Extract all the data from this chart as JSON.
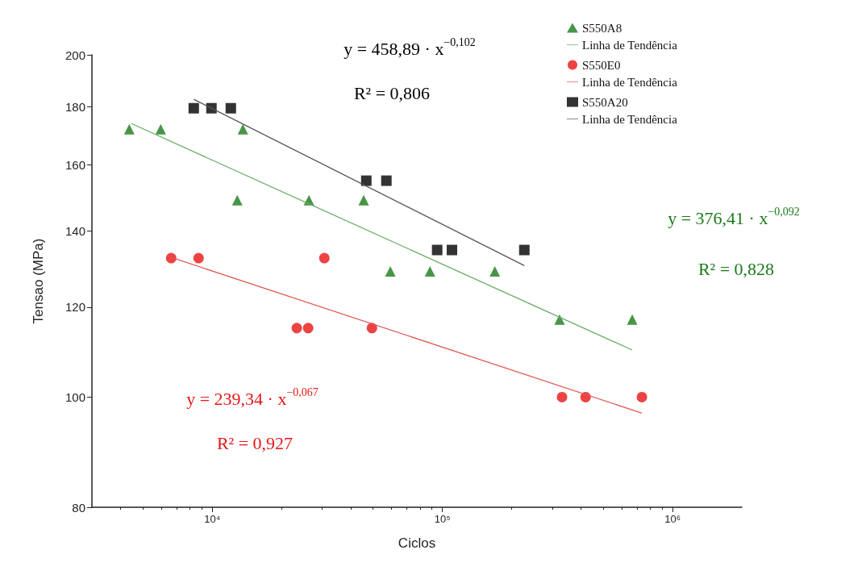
{
  "chart_data": {
    "type": "scatter",
    "xlabel": "Ciclos",
    "ylabel": "Tensao (MPa)",
    "log": "xy",
    "grid": false,
    "legend": "top right",
    "xlim": [
      3000,
      2000000
    ],
    "xticks": [
      {
        "value": 10000,
        "label": "10⁴"
      },
      {
        "value": 100000,
        "label": "10⁵"
      },
      {
        "value": 1000000,
        "label": "10⁶"
      }
    ],
    "ylim": [
      80,
      200
    ],
    "yticks": [
      80,
      100,
      120,
      140,
      160,
      180,
      200
    ],
    "series": [
      {
        "name": "S550A8",
        "marker": "triangle",
        "color": "#1a7a1a",
        "x": [
          4360,
          5970,
          13590,
          12840,
          26300,
          45500,
          59400,
          88300,
          169000,
          323000,
          668000
        ],
        "values": [
          172,
          172,
          172,
          149,
          149,
          149,
          129,
          129,
          129,
          117,
          117
        ]
      },
      {
        "name": "Linha de Tendência",
        "type": "line",
        "marker": "none",
        "color": "#6aad6a",
        "x": [
          4460,
          668000
        ],
        "values": [
          174,
          110
        ]
      },
      {
        "name": "S550E0",
        "marker": "circle",
        "color": "#e81414",
        "x": [
          6630,
          8720,
          23300,
          26100,
          30700,
          49400,
          331000,
          419000,
          736000
        ],
        "values": [
          132.5,
          132.5,
          115,
          115,
          132.5,
          115,
          100,
          100,
          100
        ]
      },
      {
        "name": "Linha de Tendência",
        "type": "line",
        "marker": "none",
        "color": "#e05a5a",
        "x": [
          6630,
          736000
        ],
        "values": [
          132.7,
          96.8
        ]
      },
      {
        "name": "S550A20",
        "marker": "square",
        "color": "#000000",
        "x": [
          8310,
          9920,
          12040,
          46700,
          57100,
          94900,
          110000,
          227000
        ],
        "values": [
          179.5,
          179.5,
          179.5,
          155,
          155,
          134.7,
          134.7,
          134.7
        ]
      },
      {
        "name": "Linha de Tendência",
        "type": "line",
        "marker": "none",
        "color": "#555555",
        "x": [
          8310,
          227000
        ],
        "values": [
          182.8,
          130.5
        ]
      }
    ],
    "annotations": [
      "y = 376,41 · x$^{−0,092}$",
      "R² = 0,828",
      "y = 239,34 · x$^{−0,067}$",
      "R² = 0,927",
      "y = 458,89 · x$^{−0,102}$",
      "R² = 0,806"
    ]
  }
}
